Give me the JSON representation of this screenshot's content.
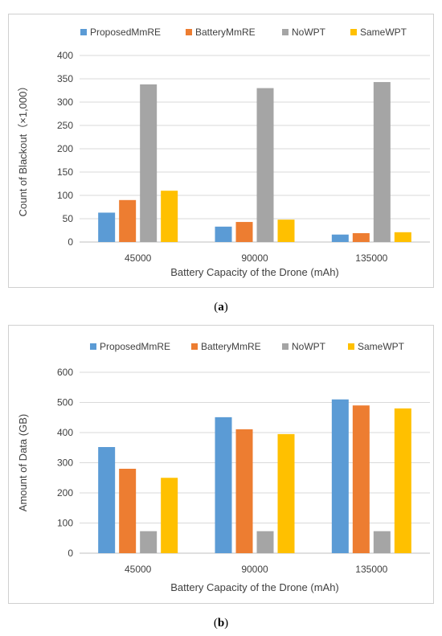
{
  "captions": {
    "a_open": "(",
    "a_letter": "a",
    "a_close": ")",
    "b_open": "(",
    "b_letter": "b",
    "b_close": ")"
  },
  "colors": {
    "ProposedMmRE": "#5B9BD5",
    "BatteryMmRE": "#ED7D31",
    "NoWPT": "#A5A5A5",
    "SameWPT": "#FFC000",
    "grid": "#D9D9D9",
    "axis": "#BFBFBF",
    "text": "#404040"
  },
  "chart_data": [
    {
      "type": "bar",
      "title": "",
      "xlabel": "Battery Capacity of  the Drone (mAh)",
      "ylabel": "Count of Blackout（×1,000）",
      "categories": [
        "45000",
        "90000",
        "135000"
      ],
      "ylim": [
        0,
        400
      ],
      "yticks": [
        0,
        50,
        100,
        150,
        200,
        250,
        300,
        350,
        400
      ],
      "grid": true,
      "legend": "top",
      "series": [
        {
          "name": "ProposedMmRE",
          "values": [
            63,
            33,
            16
          ]
        },
        {
          "name": "BatteryMmRE",
          "values": [
            90,
            43,
            19
          ]
        },
        {
          "name": "NoWPT",
          "values": [
            338,
            330,
            343
          ]
        },
        {
          "name": "SameWPT",
          "values": [
            110,
            48,
            21
          ]
        }
      ]
    },
    {
      "type": "bar",
      "title": "",
      "xlabel": "Battery Capacity of  the Drone (mAh)",
      "ylabel": "Amount of Data  (GB)",
      "categories": [
        "45000",
        "90000",
        "135000"
      ],
      "ylim": [
        0,
        600
      ],
      "yticks": [
        0,
        100,
        200,
        300,
        400,
        500,
        600
      ],
      "grid": true,
      "legend": "top",
      "series": [
        {
          "name": "ProposedMmRE",
          "values": [
            352,
            451,
            510
          ]
        },
        {
          "name": "BatteryMmRE",
          "values": [
            280,
            411,
            490
          ]
        },
        {
          "name": "NoWPT",
          "values": [
            73,
            73,
            73
          ]
        },
        {
          "name": "SameWPT",
          "values": [
            250,
            395,
            480
          ]
        }
      ]
    }
  ]
}
